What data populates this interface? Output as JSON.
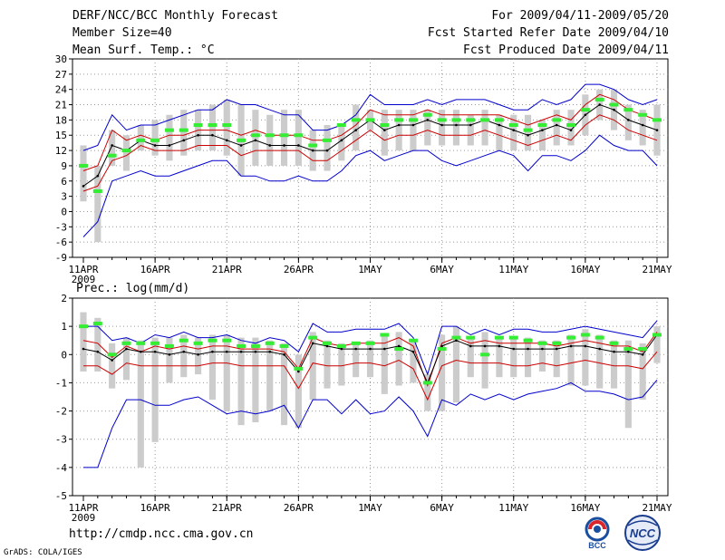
{
  "header": {
    "title": "DERF/NCC/BCC Monthly Forecast",
    "member_size": "Member Size=40",
    "variable": "Mean Surf. Temp.: °C",
    "period": "For 2009/04/11-2009/05/20",
    "started": "Fcst Started Refer Date 2009/04/10",
    "produced": "Fcst Produced Date 2009/04/11"
  },
  "footer": {
    "url": "http://cmdp.ncc.cma.gov.cn",
    "credit": "GrADS: COLA/IGES",
    "logo_bcc_text": "BCC",
    "logo_ncc_text": "NCC"
  },
  "colors": {
    "max_min": "#0000cc",
    "sd": "#cc0000",
    "mean": "#000000",
    "box": "#cccccc",
    "median": "#33ee33"
  },
  "chart_data": [
    {
      "type": "line",
      "title": "Mean Surf. Temp.: °C",
      "x_tick_labels": [
        "11APR",
        "16APR",
        "21APR",
        "26APR",
        "1MAY",
        "6MAY",
        "11MAY",
        "16MAY",
        "21MAY"
      ],
      "x_tick_day_index": [
        0,
        5,
        10,
        15,
        20,
        25,
        30,
        35,
        40
      ],
      "x_year_label": "2009",
      "ylim": [
        -9,
        30
      ],
      "y_ticks": [
        -9,
        -6,
        -3,
        0,
        3,
        6,
        9,
        12,
        15,
        18,
        21,
        24,
        27,
        30
      ],
      "series": [
        {
          "name": "max",
          "values": [
            12,
            13,
            19,
            16,
            17,
            17,
            18,
            19,
            20,
            20,
            22,
            21,
            21,
            20,
            19,
            19,
            16,
            16,
            17,
            19,
            23,
            21,
            21,
            21,
            22,
            21,
            22,
            22,
            22,
            21,
            20,
            20,
            22,
            21,
            22,
            25,
            25,
            24,
            22,
            21,
            22
          ]
        },
        {
          "name": "mean_plus_sd",
          "values": [
            8,
            9,
            16,
            14,
            15,
            14,
            15,
            15,
            16,
            16,
            16,
            15,
            16,
            15,
            15,
            15,
            14,
            14,
            15,
            17,
            20,
            19,
            19,
            19,
            20,
            19,
            19,
            19,
            19,
            19,
            18,
            17,
            18,
            19,
            18,
            21,
            23,
            22,
            20,
            19,
            18
          ]
        },
        {
          "name": "mean",
          "values": [
            5,
            7,
            13,
            12,
            14,
            13,
            13,
            14,
            15,
            15,
            14,
            13,
            14,
            13,
            13,
            13,
            12,
            12,
            14,
            16,
            18,
            16,
            17,
            17,
            18,
            17,
            17,
            17,
            18,
            17,
            16,
            15,
            16,
            17,
            16,
            19,
            21,
            20,
            18,
            17,
            16
          ]
        },
        {
          "name": "mean_minus_sd",
          "values": [
            4,
            5,
            10,
            11,
            13,
            12,
            12,
            12,
            13,
            13,
            13,
            11,
            12,
            12,
            12,
            12,
            10,
            10,
            12,
            14,
            16,
            14,
            15,
            15,
            16,
            15,
            15,
            15,
            16,
            15,
            14,
            13,
            14,
            15,
            14,
            17,
            19,
            18,
            16,
            15,
            14
          ]
        },
        {
          "name": "min",
          "values": [
            -5,
            -2,
            6,
            7,
            8,
            7,
            7,
            8,
            9,
            10,
            10,
            7,
            7,
            6,
            6,
            7,
            6,
            6,
            8,
            11,
            12,
            10,
            11,
            12,
            12,
            10,
            9,
            10,
            11,
            12,
            11,
            8,
            11,
            11,
            10,
            12,
            15,
            13,
            12,
            12,
            9
          ]
        },
        {
          "name": "box_high",
          "values": [
            13,
            9,
            16,
            15,
            17,
            18,
            19,
            20,
            20,
            21,
            22,
            21,
            20,
            19,
            20,
            20,
            16,
            17,
            17,
            21,
            20,
            20,
            20,
            20,
            20,
            20,
            20,
            19,
            20,
            19,
            19,
            19,
            18,
            20,
            20,
            23,
            24,
            24,
            21,
            20,
            21
          ]
        },
        {
          "name": "box_low",
          "values": [
            2,
            -6,
            9,
            8,
            12,
            11,
            10,
            11,
            12,
            12,
            11,
            7,
            9,
            9,
            9,
            9,
            8,
            8,
            10,
            12,
            16,
            11,
            12,
            12,
            13,
            13,
            13,
            13,
            13,
            12,
            12,
            12,
            12,
            13,
            13,
            15,
            18,
            16,
            14,
            13,
            11
          ]
        },
        {
          "name": "median",
          "values": [
            9,
            4,
            11,
            12,
            14,
            14,
            16,
            16,
            17,
            17,
            17,
            14,
            15,
            15,
            15,
            15,
            13,
            14,
            17,
            18,
            18,
            17,
            18,
            18,
            19,
            18,
            18,
            18,
            18,
            18,
            17,
            16,
            17,
            18,
            17,
            20,
            22,
            21,
            20,
            19,
            18
          ]
        }
      ]
    },
    {
      "type": "line",
      "title": "Prec.: log(mm/d)",
      "x_tick_labels": [
        "11APR",
        "16APR",
        "21APR",
        "26APR",
        "1MAY",
        "6MAY",
        "11MAY",
        "16MAY",
        "21MAY"
      ],
      "x_tick_day_index": [
        0,
        5,
        10,
        15,
        20,
        25,
        30,
        35,
        40
      ],
      "x_year_label": "2009",
      "ylim": [
        -5,
        2
      ],
      "y_ticks": [
        -5,
        -4,
        -3,
        -2,
        -1,
        0,
        1,
        2
      ],
      "series": [
        {
          "name": "max",
          "values": [
            1.0,
            1.0,
            0.5,
            0.6,
            0.4,
            0.7,
            0.6,
            0.8,
            0.6,
            0.6,
            0.7,
            0.5,
            0.4,
            0.6,
            0.5,
            0.1,
            1.1,
            0.8,
            0.8,
            0.9,
            0.9,
            0.9,
            1.1,
            0.6,
            -0.7,
            1.0,
            1.0,
            0.7,
            0.9,
            0.7,
            0.9,
            0.9,
            0.8,
            0.8,
            0.9,
            1.0,
            0.9,
            0.8,
            0.7,
            0.6,
            1.2
          ]
        },
        {
          "name": "mean_plus_sd",
          "values": [
            0.5,
            0.4,
            -0.1,
            0.3,
            0.1,
            0.3,
            0.2,
            0.3,
            0.2,
            0.3,
            0.3,
            0.2,
            0.2,
            0.2,
            0.1,
            -0.5,
            0.6,
            0.4,
            0.3,
            0.4,
            0.4,
            0.4,
            0.6,
            0.3,
            -1.1,
            0.4,
            0.6,
            0.4,
            0.5,
            0.4,
            0.4,
            0.4,
            0.4,
            0.3,
            0.4,
            0.5,
            0.4,
            0.3,
            0.3,
            0.1,
            0.8
          ]
        },
        {
          "name": "mean",
          "values": [
            0.2,
            0.1,
            -0.2,
            0.2,
            0.1,
            0.1,
            0.0,
            0.1,
            0.0,
            0.1,
            0.1,
            0.1,
            0.1,
            0.1,
            0.0,
            -0.6,
            0.4,
            0.3,
            0.2,
            0.2,
            0.2,
            0.2,
            0.3,
            0.1,
            -1.0,
            0.3,
            0.5,
            0.3,
            0.3,
            0.3,
            0.2,
            0.2,
            0.2,
            0.2,
            0.3,
            0.3,
            0.2,
            0.1,
            0.1,
            0.0,
            0.7
          ]
        },
        {
          "name": "mean_minus_sd",
          "values": [
            -0.4,
            -0.4,
            -0.7,
            -0.3,
            -0.4,
            -0.4,
            -0.4,
            -0.4,
            -0.4,
            -0.3,
            -0.3,
            -0.4,
            -0.4,
            -0.4,
            -0.4,
            -1.2,
            -0.3,
            -0.4,
            -0.4,
            -0.3,
            -0.3,
            -0.4,
            -0.2,
            -0.5,
            -1.6,
            -0.4,
            -0.2,
            -0.3,
            -0.3,
            -0.3,
            -0.4,
            -0.4,
            -0.3,
            -0.4,
            -0.3,
            -0.2,
            -0.3,
            -0.4,
            -0.4,
            -0.5,
            0.1
          ]
        },
        {
          "name": "min",
          "values": [
            -4.0,
            -4.0,
            -2.6,
            -1.6,
            -1.6,
            -1.8,
            -1.8,
            -1.6,
            -1.5,
            -1.8,
            -2.1,
            -2.0,
            -2.1,
            -2.0,
            -1.8,
            -2.6,
            -1.6,
            -1.6,
            -2.1,
            -1.6,
            -2.1,
            -2.0,
            -1.5,
            -2.0,
            -2.9,
            -1.6,
            -1.8,
            -1.4,
            -1.6,
            -1.4,
            -1.6,
            -1.4,
            -1.3,
            -1.2,
            -1.0,
            -1.3,
            -1.3,
            -1.4,
            -1.6,
            -1.5,
            -0.9
          ]
        },
        {
          "name": "box_high",
          "values": [
            1.5,
            1.3,
            0.4,
            0.6,
            0.5,
            0.6,
            0.6,
            0.7,
            0.6,
            0.7,
            0.7,
            0.6,
            0.6,
            0.5,
            0.4,
            0.0,
            0.8,
            0.5,
            0.4,
            0.4,
            0.5,
            0.7,
            0.8,
            0.5,
            -0.7,
            0.7,
            1.0,
            0.6,
            0.8,
            0.6,
            0.6,
            0.6,
            0.5,
            0.5,
            0.7,
            0.9,
            0.7,
            0.5,
            0.5,
            0.4,
            1.0
          ]
        },
        {
          "name": "box_low",
          "values": [
            -0.6,
            -0.6,
            -1.2,
            -0.9,
            -4.0,
            -3.1,
            -1.0,
            -0.8,
            -0.7,
            -1.6,
            -2.0,
            -2.5,
            -2.4,
            -2.0,
            -2.5,
            -2.6,
            -1.6,
            -1.2,
            -1.1,
            -0.8,
            -0.8,
            -1.4,
            -1.1,
            -1.0,
            -2.0,
            -2.0,
            -1.7,
            -0.8,
            -1.2,
            -0.8,
            -0.8,
            -0.8,
            -0.6,
            -0.8,
            -1.1,
            -1.1,
            -1.2,
            -1.2,
            -2.6,
            -1.6,
            -0.3
          ]
        },
        {
          "name": "median",
          "values": [
            1.0,
            1.1,
            0.0,
            0.4,
            0.4,
            0.4,
            0.3,
            0.5,
            0.4,
            0.5,
            0.5,
            0.3,
            0.3,
            0.4,
            0.3,
            -0.5,
            0.6,
            0.4,
            0.3,
            0.4,
            0.4,
            0.7,
            0.2,
            0.5,
            -1.0,
            0.2,
            0.6,
            0.6,
            0.0,
            0.6,
            0.6,
            0.5,
            0.4,
            0.4,
            0.6,
            0.7,
            0.6,
            0.4,
            0.2,
            0.2,
            0.7
          ]
        }
      ]
    }
  ]
}
